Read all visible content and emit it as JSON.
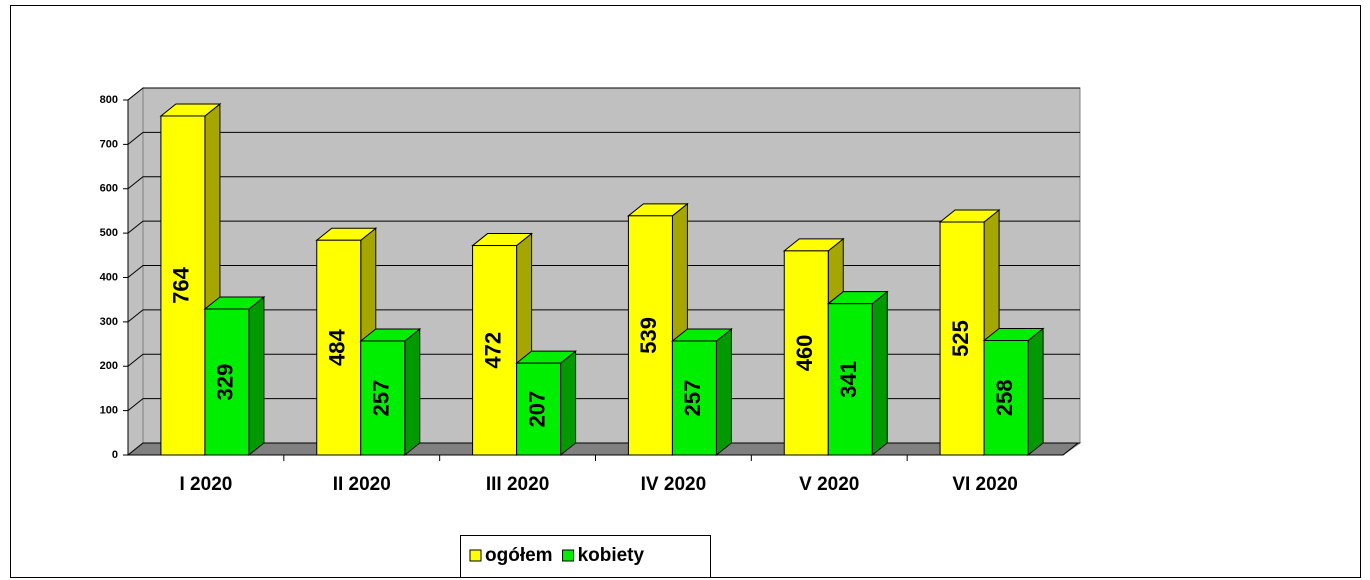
{
  "chart_data": {
    "type": "bar3d",
    "categories": [
      "I 2020",
      "II 2020",
      "III 2020",
      "IV 2020",
      "V 2020",
      "VI 2020"
    ],
    "series": [
      {
        "name": "ogółem",
        "color": "#ffff00",
        "side": "#a6a600",
        "values": [
          764,
          484,
          472,
          539,
          460,
          525
        ]
      },
      {
        "name": "kobiety",
        "color": "#00ee00",
        "side": "#009a00",
        "values": [
          329,
          257,
          207,
          257,
          341,
          258
        ]
      }
    ],
    "ylim": [
      0,
      800
    ],
    "yticks": [
      0,
      100,
      200,
      300,
      400,
      500,
      600,
      700,
      800
    ],
    "grid": true,
    "legend": "bottom"
  }
}
